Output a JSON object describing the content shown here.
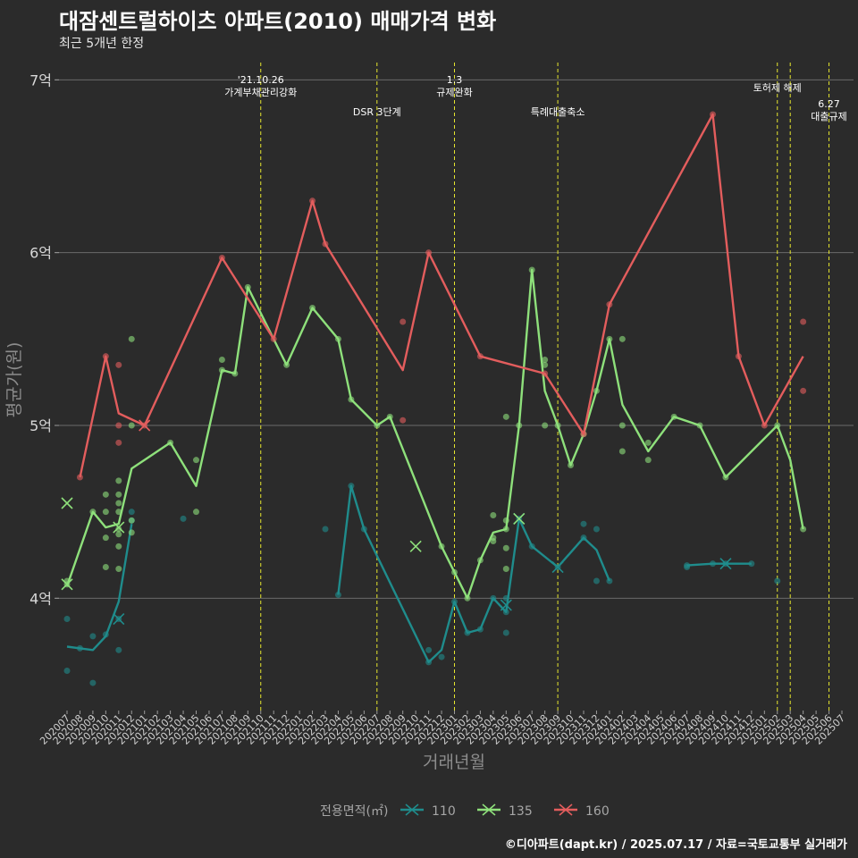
{
  "title": "대잠센트럴하이츠 아파트(2010) 매매가격 변화",
  "subtitle": "최근 5개년 한정",
  "caption": "©디아파트(dapt.kr) / 2025.07.17 / 자료=국토교통부 실거래가",
  "chart_data": {
    "type": "line",
    "xlabel": "거래년월",
    "ylabel": "평균가(원)",
    "x_categories": [
      "202007",
      "202008",
      "202009",
      "202010",
      "202011",
      "202012",
      "202101",
      "202102",
      "202103",
      "202104",
      "202105",
      "202106",
      "202107",
      "202108",
      "202109",
      "202110",
      "202111",
      "202112",
      "202201",
      "202202",
      "202203",
      "202204",
      "202205",
      "202206",
      "202207",
      "202208",
      "202209",
      "202210",
      "202211",
      "202212",
      "202301",
      "202302",
      "202303",
      "202304",
      "202305",
      "202306",
      "202307",
      "202308",
      "202309",
      "202310",
      "202311",
      "202312",
      "202401",
      "202402",
      "202403",
      "202404",
      "202405",
      "202406",
      "202407",
      "202408",
      "202409",
      "202410",
      "202411",
      "202412",
      "202501",
      "202502",
      "202503",
      "202504",
      "202505",
      "202506",
      "202507"
    ],
    "y_unit": "억",
    "ylim": [
      3.35,
      7.1
    ],
    "y_ticks": [
      {
        "value": 4,
        "label": "4억"
      },
      {
        "value": 5,
        "label": "5억"
      },
      {
        "value": 6,
        "label": "6억"
      },
      {
        "value": 7,
        "label": "7억"
      }
    ],
    "grid": "horizontal",
    "legend": {
      "title": "전용면적(㎡)",
      "position": "bottom"
    },
    "events": [
      {
        "x": 15,
        "lines": [
          "'21.10.26",
          "가계부채관리강화"
        ],
        "row": 0
      },
      {
        "x": 24,
        "lines": [
          "DSR 3단계"
        ],
        "row": 2
      },
      {
        "x": 30,
        "lines": [
          "1.3",
          "규제완화"
        ],
        "row": 0
      },
      {
        "x": 38,
        "lines": [
          "특례대출축소"
        ],
        "row": 2
      },
      {
        "x": 55,
        "lines": [
          "토허제 해제"
        ],
        "row": 1
      },
      {
        "x": 56,
        "lines": [],
        "row": 1
      },
      {
        "x": 59,
        "lines": [
          "6.27",
          "대출규제"
        ],
        "row": 3
      }
    ],
    "series": [
      {
        "name": "110",
        "color": "#1f8c8c",
        "segments": [
          [
            [
              0,
              3.72
            ],
            [
              1,
              3.71
            ],
            [
              2,
              3.7
            ],
            [
              3,
              3.78
            ],
            [
              4,
              3.98
            ],
            [
              5,
              4.43
            ]
          ],
          [
            [
              21,
              4.02
            ],
            [
              22,
              4.65
            ],
            [
              23,
              4.4
            ],
            [
              28,
              3.63
            ],
            [
              29,
              3.7
            ],
            [
              30,
              3.98
            ],
            [
              31,
              3.8
            ],
            [
              32,
              3.82
            ],
            [
              33,
              4.0
            ],
            [
              34,
              3.92
            ],
            [
              35,
              4.46
            ],
            [
              36,
              4.3
            ],
            [
              38,
              4.18
            ],
            [
              40,
              4.35
            ],
            [
              41,
              4.28
            ],
            [
              42,
              4.1
            ]
          ],
          [
            [
              48,
              4.19
            ],
            [
              50,
              4.2
            ],
            [
              51,
              4.2
            ],
            [
              53,
              4.2
            ]
          ]
        ],
        "points": [
          [
            0,
            3.88
          ],
          [
            0,
            3.58
          ],
          [
            1,
            3.71
          ],
          [
            2,
            3.51
          ],
          [
            2,
            3.78
          ],
          [
            3,
            3.79
          ],
          [
            4,
            3.7
          ],
          [
            4,
            3.88
          ],
          [
            5,
            4.5
          ],
          [
            5,
            4.45
          ],
          [
            9,
            4.46
          ],
          [
            20,
            4.4
          ],
          [
            21,
            4.02
          ],
          [
            22,
            4.65
          ],
          [
            23,
            4.4
          ],
          [
            28,
            3.7
          ],
          [
            28,
            3.63
          ],
          [
            29,
            3.66
          ],
          [
            30,
            3.98
          ],
          [
            31,
            3.8
          ],
          [
            32,
            3.82
          ],
          [
            33,
            4.0
          ],
          [
            34,
            3.8
          ],
          [
            34,
            4.0
          ],
          [
            34,
            3.92
          ],
          [
            35,
            4.46
          ],
          [
            36,
            4.3
          ],
          [
            38,
            4.18
          ],
          [
            40,
            4.35
          ],
          [
            40,
            4.43
          ],
          [
            41,
            4.4
          ],
          [
            41,
            4.1
          ],
          [
            42,
            4.1
          ],
          [
            48,
            4.19
          ],
          [
            48,
            4.18
          ],
          [
            50,
            4.2
          ],
          [
            51,
            4.2
          ],
          [
            53,
            4.2
          ],
          [
            55,
            4.1
          ]
        ],
        "crosses": [
          [
            4,
            3.88
          ],
          [
            34,
            3.96
          ],
          [
            35,
            4.46
          ],
          [
            38,
            4.18
          ],
          [
            51,
            4.2
          ]
        ]
      },
      {
        "name": "135",
        "color": "#8ee07b",
        "segments": [
          [
            [
              0,
              4.07
            ],
            [
              2,
              4.5
            ],
            [
              3,
              4.41
            ],
            [
              4,
              4.43
            ],
            [
              5,
              4.75
            ],
            [
              8,
              4.9
            ],
            [
              10,
              4.65
            ],
            [
              12,
              5.32
            ],
            [
              13,
              5.3
            ],
            [
              14,
              5.8
            ],
            [
              17,
              5.35
            ],
            [
              19,
              5.68
            ],
            [
              21,
              5.5
            ],
            [
              22,
              5.15
            ],
            [
              24,
              5.0
            ],
            [
              25,
              5.05
            ],
            [
              29,
              4.3
            ],
            [
              30,
              4.15
            ],
            [
              31,
              4.0
            ],
            [
              32,
              4.22
            ],
            [
              33,
              4.38
            ],
            [
              34,
              4.4
            ],
            [
              35,
              5.0
            ],
            [
              36,
              5.9
            ],
            [
              37,
              5.2
            ],
            [
              38,
              5.0
            ],
            [
              39,
              4.77
            ],
            [
              40,
              4.95
            ],
            [
              41,
              5.2
            ],
            [
              42,
              5.5
            ],
            [
              43,
              5.12
            ],
            [
              45,
              4.85
            ],
            [
              47,
              5.05
            ],
            [
              49,
              5.0
            ],
            [
              51,
              4.7
            ],
            [
              55,
              5.0
            ],
            [
              56,
              4.8
            ],
            [
              57,
              4.4
            ]
          ]
        ],
        "points": [
          [
            0,
            4.08
          ],
          [
            0,
            4.1
          ],
          [
            2,
            4.5
          ],
          [
            3,
            4.35
          ],
          [
            3,
            4.5
          ],
          [
            3,
            4.6
          ],
          [
            3,
            4.18
          ],
          [
            4,
            4.68
          ],
          [
            4,
            4.6
          ],
          [
            4,
            4.55
          ],
          [
            4,
            4.5
          ],
          [
            4,
            4.4
          ],
          [
            4,
            4.37
          ],
          [
            4,
            4.3
          ],
          [
            4,
            4.17
          ],
          [
            5,
            4.38
          ],
          [
            5,
            4.45
          ],
          [
            5,
            5.0
          ],
          [
            5,
            5.5
          ],
          [
            8,
            4.9
          ],
          [
            10,
            4.8
          ],
          [
            10,
            4.5
          ],
          [
            12,
            5.32
          ],
          [
            12,
            5.38
          ],
          [
            13,
            5.3
          ],
          [
            14,
            5.8
          ],
          [
            17,
            5.35
          ],
          [
            19,
            5.68
          ],
          [
            21,
            5.5
          ],
          [
            22,
            5.15
          ],
          [
            24,
            5.0
          ],
          [
            25,
            5.05
          ],
          [
            29,
            4.3
          ],
          [
            30,
            4.15
          ],
          [
            31,
            4.0
          ],
          [
            32,
            4.22
          ],
          [
            33,
            4.48
          ],
          [
            33,
            4.35
          ],
          [
            33,
            4.33
          ],
          [
            34,
            4.4
          ],
          [
            34,
            4.29
          ],
          [
            34,
            4.17
          ],
          [
            34,
            4.45
          ],
          [
            34,
            5.05
          ],
          [
            35,
            5.0
          ],
          [
            36,
            5.9
          ],
          [
            37,
            5.0
          ],
          [
            37,
            5.35
          ],
          [
            37,
            5.38
          ],
          [
            38,
            5.0
          ],
          [
            39,
            4.77
          ],
          [
            40,
            4.95
          ],
          [
            41,
            5.2
          ],
          [
            42,
            5.5
          ],
          [
            43,
            5.0
          ],
          [
            43,
            4.85
          ],
          [
            43,
            5.5
          ],
          [
            45,
            4.9
          ],
          [
            45,
            4.8
          ],
          [
            47,
            5.05
          ],
          [
            49,
            5.0
          ],
          [
            51,
            4.7
          ],
          [
            55,
            5.0
          ],
          [
            57,
            4.4
          ]
        ],
        "crosses": [
          [
            0,
            4.55
          ],
          [
            0,
            4.08
          ],
          [
            4,
            4.41
          ],
          [
            27,
            4.3
          ],
          [
            35,
            4.46
          ]
        ]
      },
      {
        "name": "160",
        "color": "#e35d5d",
        "segments": [
          [
            [
              1,
              4.7
            ],
            [
              3,
              5.4
            ],
            [
              4,
              5.07
            ],
            [
              6,
              5.0
            ],
            [
              12,
              5.97
            ],
            [
              16,
              5.5
            ],
            [
              19,
              6.3
            ],
            [
              20,
              6.05
            ],
            [
              26,
              5.32
            ],
            [
              28,
              6.0
            ],
            [
              32,
              5.4
            ],
            [
              37,
              5.3
            ],
            [
              40,
              4.95
            ],
            [
              42,
              5.7
            ],
            [
              50,
              6.8
            ],
            [
              52,
              5.4
            ],
            [
              54,
              5.0
            ],
            [
              57,
              5.4
            ]
          ]
        ],
        "points": [
          [
            1,
            4.7
          ],
          [
            3,
            5.4
          ],
          [
            4,
            5.35
          ],
          [
            4,
            5.0
          ],
          [
            4,
            4.9
          ],
          [
            6,
            5.0
          ],
          [
            12,
            5.97
          ],
          [
            16,
            5.5
          ],
          [
            19,
            6.3
          ],
          [
            20,
            6.05
          ],
          [
            26,
            5.6
          ],
          [
            26,
            5.03
          ],
          [
            28,
            6.0
          ],
          [
            32,
            5.4
          ],
          [
            37,
            5.3
          ],
          [
            40,
            4.95
          ],
          [
            42,
            5.7
          ],
          [
            50,
            6.8
          ],
          [
            52,
            5.4
          ],
          [
            54,
            5.0
          ],
          [
            57,
            5.6
          ],
          [
            57,
            5.2
          ]
        ],
        "crosses": [
          [
            6,
            5.0
          ]
        ]
      }
    ]
  }
}
